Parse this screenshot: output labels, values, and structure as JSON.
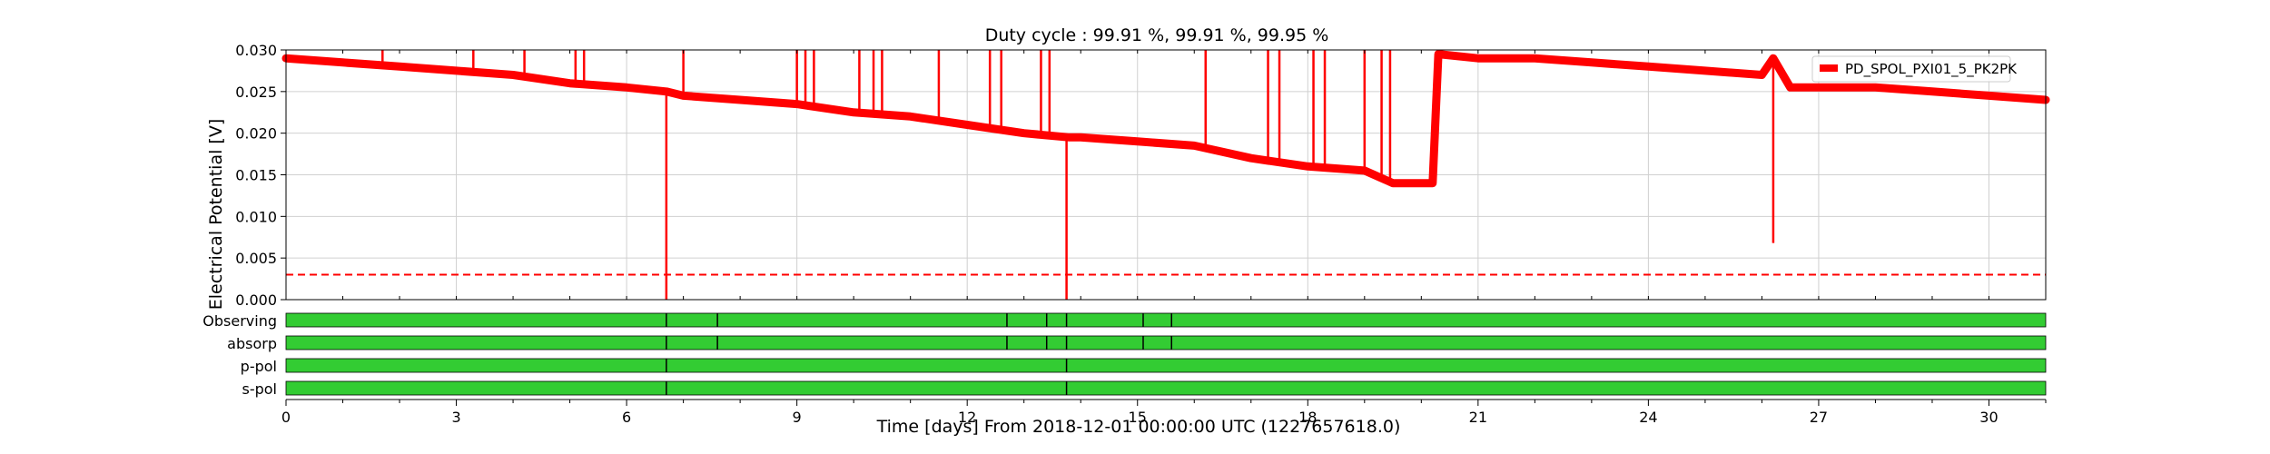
{
  "chart_data": [
    {
      "type": "line",
      "title": "Duty cycle : 99.91 %, 99.91 %, 99.95 %",
      "xlabel": "Time [days] From 2018-12-01 00:00:00 UTC (1227657618.0)",
      "ylabel": "Electrical Potential [V]",
      "xlim": [
        0,
        31
      ],
      "ylim": [
        0,
        0.03
      ],
      "grid": true,
      "legend_position": "top-right",
      "x_ticks": [
        "0",
        "3",
        "6",
        "9",
        "12",
        "15",
        "18",
        "21",
        "24",
        "27",
        "30"
      ],
      "y_ticks": [
        "0.000",
        "0.005",
        "0.010",
        "0.015",
        "0.020",
        "0.025",
        "0.030"
      ],
      "threshold": {
        "value": 0.003,
        "style": "dashed"
      },
      "series": [
        {
          "name": "PD_SPOL_PXI01_5_PK2PK",
          "color": "#ff0000",
          "x": [
            0,
            1,
            2,
            3,
            4,
            5,
            6,
            6.7,
            7,
            8,
            9,
            10,
            11,
            12,
            13,
            13.8,
            14,
            15,
            16,
            17,
            18,
            19,
            19.5,
            20,
            20.2,
            20.3,
            21,
            22,
            23,
            24,
            25,
            26,
            26.2,
            26.5,
            27,
            28,
            29,
            30,
            31
          ],
          "y": [
            0.029,
            0.0285,
            0.028,
            0.0275,
            0.027,
            0.026,
            0.0255,
            0.025,
            0.0245,
            0.024,
            0.0235,
            0.0225,
            0.022,
            0.021,
            0.02,
            0.0195,
            0.0195,
            0.019,
            0.0185,
            0.017,
            0.016,
            0.0155,
            0.014,
            0.014,
            0.014,
            0.0295,
            0.029,
            0.029,
            0.0285,
            0.028,
            0.0275,
            0.027,
            0.029,
            0.0255,
            0.0255,
            0.0255,
            0.025,
            0.0245,
            0.024
          ],
          "dips": [
            {
              "x": 6.7,
              "min": 0.0
            },
            {
              "x": 13.75,
              "min": 0.0
            },
            {
              "x": 26.2,
              "min": 0.0068
            }
          ],
          "spikes": [
            {
              "x": 1.7,
              "to": 0.03
            },
            {
              "x": 3.3,
              "to": 0.03
            },
            {
              "x": 4.2,
              "to": 0.03
            },
            {
              "x": 5.1,
              "to": 0.03
            },
            {
              "x": 5.25,
              "to": 0.03
            },
            {
              "x": 7.0,
              "to": 0.03
            },
            {
              "x": 9.0,
              "to": 0.03
            },
            {
              "x": 9.15,
              "to": 0.03
            },
            {
              "x": 9.3,
              "to": 0.03
            },
            {
              "x": 10.1,
              "to": 0.03
            },
            {
              "x": 10.35,
              "to": 0.03
            },
            {
              "x": 10.5,
              "to": 0.03
            },
            {
              "x": 11.5,
              "to": 0.03
            },
            {
              "x": 12.4,
              "to": 0.03
            },
            {
              "x": 12.6,
              "to": 0.03
            },
            {
              "x": 13.3,
              "to": 0.03
            },
            {
              "x": 13.45,
              "to": 0.03
            },
            {
              "x": 16.2,
              "to": 0.03
            },
            {
              "x": 17.3,
              "to": 0.03
            },
            {
              "x": 17.5,
              "to": 0.03
            },
            {
              "x": 18.1,
              "to": 0.03
            },
            {
              "x": 18.3,
              "to": 0.03
            },
            {
              "x": 19.0,
              "to": 0.03
            },
            {
              "x": 19.3,
              "to": 0.03
            },
            {
              "x": 19.45,
              "to": 0.03
            }
          ]
        }
      ]
    },
    {
      "type": "table",
      "title": "",
      "xlim": [
        0,
        31
      ],
      "segment_color": "#33cc33",
      "rows": [
        {
          "label": "Observing",
          "breaks": [
            6.7,
            7.6,
            12.7,
            13.4,
            13.75,
            15.1,
            15.6
          ]
        },
        {
          "label": "absorp",
          "breaks": [
            6.7,
            7.6,
            12.7,
            13.4,
            13.75,
            15.1,
            15.6
          ]
        },
        {
          "label": "p-pol",
          "breaks": [
            6.7,
            13.75
          ]
        },
        {
          "label": "s-pol",
          "breaks": [
            6.7,
            13.75
          ]
        }
      ]
    }
  ]
}
